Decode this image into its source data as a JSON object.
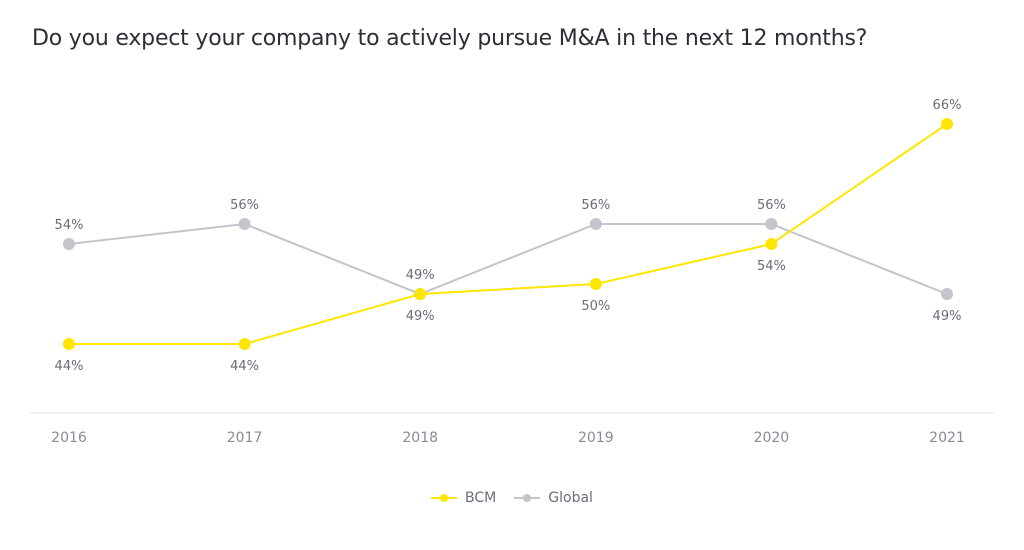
{
  "chart_data": {
    "type": "line",
    "title": "Do you expect your company to actively pursue M&A in the next 12 months?",
    "xlabel": "",
    "ylabel": "",
    "categories": [
      "2016",
      "2017",
      "2018",
      "2019",
      "2020",
      "2021"
    ],
    "series": [
      {
        "name": "BCM",
        "color": "#ffe600",
        "values": [
          44,
          44,
          49,
          50,
          54,
          66
        ],
        "labels": [
          "44%",
          "44%",
          "49%",
          "50%",
          "54%",
          "66%"
        ],
        "label_position": [
          "below",
          "below",
          "below",
          "below",
          "below",
          "above"
        ]
      },
      {
        "name": "Global",
        "color": "#c4c4cd",
        "values": [
          54,
          56,
          49,
          56,
          56,
          49
        ],
        "labels": [
          "54%",
          "56%",
          "49%",
          "56%",
          "56%",
          "49%"
        ],
        "label_position": [
          "above",
          "above",
          "above",
          "above",
          "above",
          "below"
        ]
      }
    ],
    "ylim": [
      37,
      71
    ],
    "grid": false,
    "legend": "bottom-center"
  }
}
